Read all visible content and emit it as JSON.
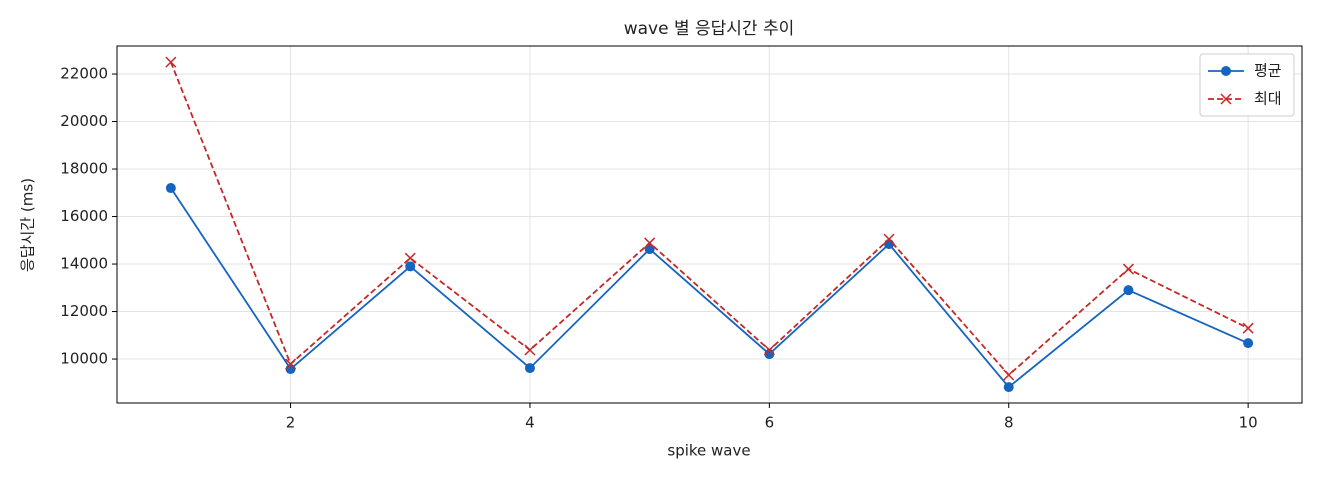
{
  "chart_data": {
    "type": "line",
    "title": "wave 별 응답시간 추이",
    "x_label": "spike wave",
    "y_label": "응답시간 (ms)",
    "x": [
      1,
      2,
      3,
      4,
      5,
      6,
      7,
      8,
      9,
      10
    ],
    "series": [
      {
        "name": "평균",
        "color": "#1565c0",
        "marker": "o",
        "dash": "solid",
        "values": [
          17200,
          9580,
          13900,
          9620,
          14630,
          10210,
          14840,
          8820,
          12900,
          10670
        ]
      },
      {
        "name": "최대",
        "color": "#c62828",
        "marker": "x",
        "dash": "dashed",
        "values": [
          22500,
          9790,
          14250,
          10380,
          14890,
          10380,
          15050,
          9330,
          13790,
          11300
        ]
      }
    ],
    "xlim": [
      0.55,
      10.45
    ],
    "xticks": [
      2,
      4,
      6,
      8,
      10
    ],
    "ylim": [
      8150,
      23180
    ],
    "yticks": [
      10000,
      12000,
      14000,
      16000,
      18000,
      20000,
      22000
    ],
    "grid": true,
    "legend": "upper right"
  }
}
